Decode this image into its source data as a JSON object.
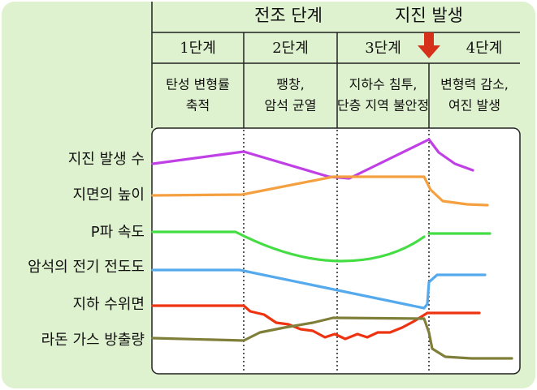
{
  "header": {
    "phases": [
      "전조 단계",
      "지진 발생"
    ]
  },
  "stages": [
    {
      "label": "1단계",
      "description": [
        "탄성 변형률",
        "축적"
      ]
    },
    {
      "label": "2단계",
      "description": [
        "팽창,",
        "암석 균열"
      ]
    },
    {
      "label": "3단계",
      "description": [
        "지하수 침투,",
        "단층 지역 불안정"
      ]
    },
    {
      "label": "4단계",
      "description": [
        "변형력 감소,",
        "여진 발생"
      ]
    }
  ],
  "rows": [
    "지진 발생 수",
    "지면의 높이",
    "P파 속도",
    "암석의 전기 전도도",
    "지하 수위면",
    "라돈 가스 방출량"
  ]
}
